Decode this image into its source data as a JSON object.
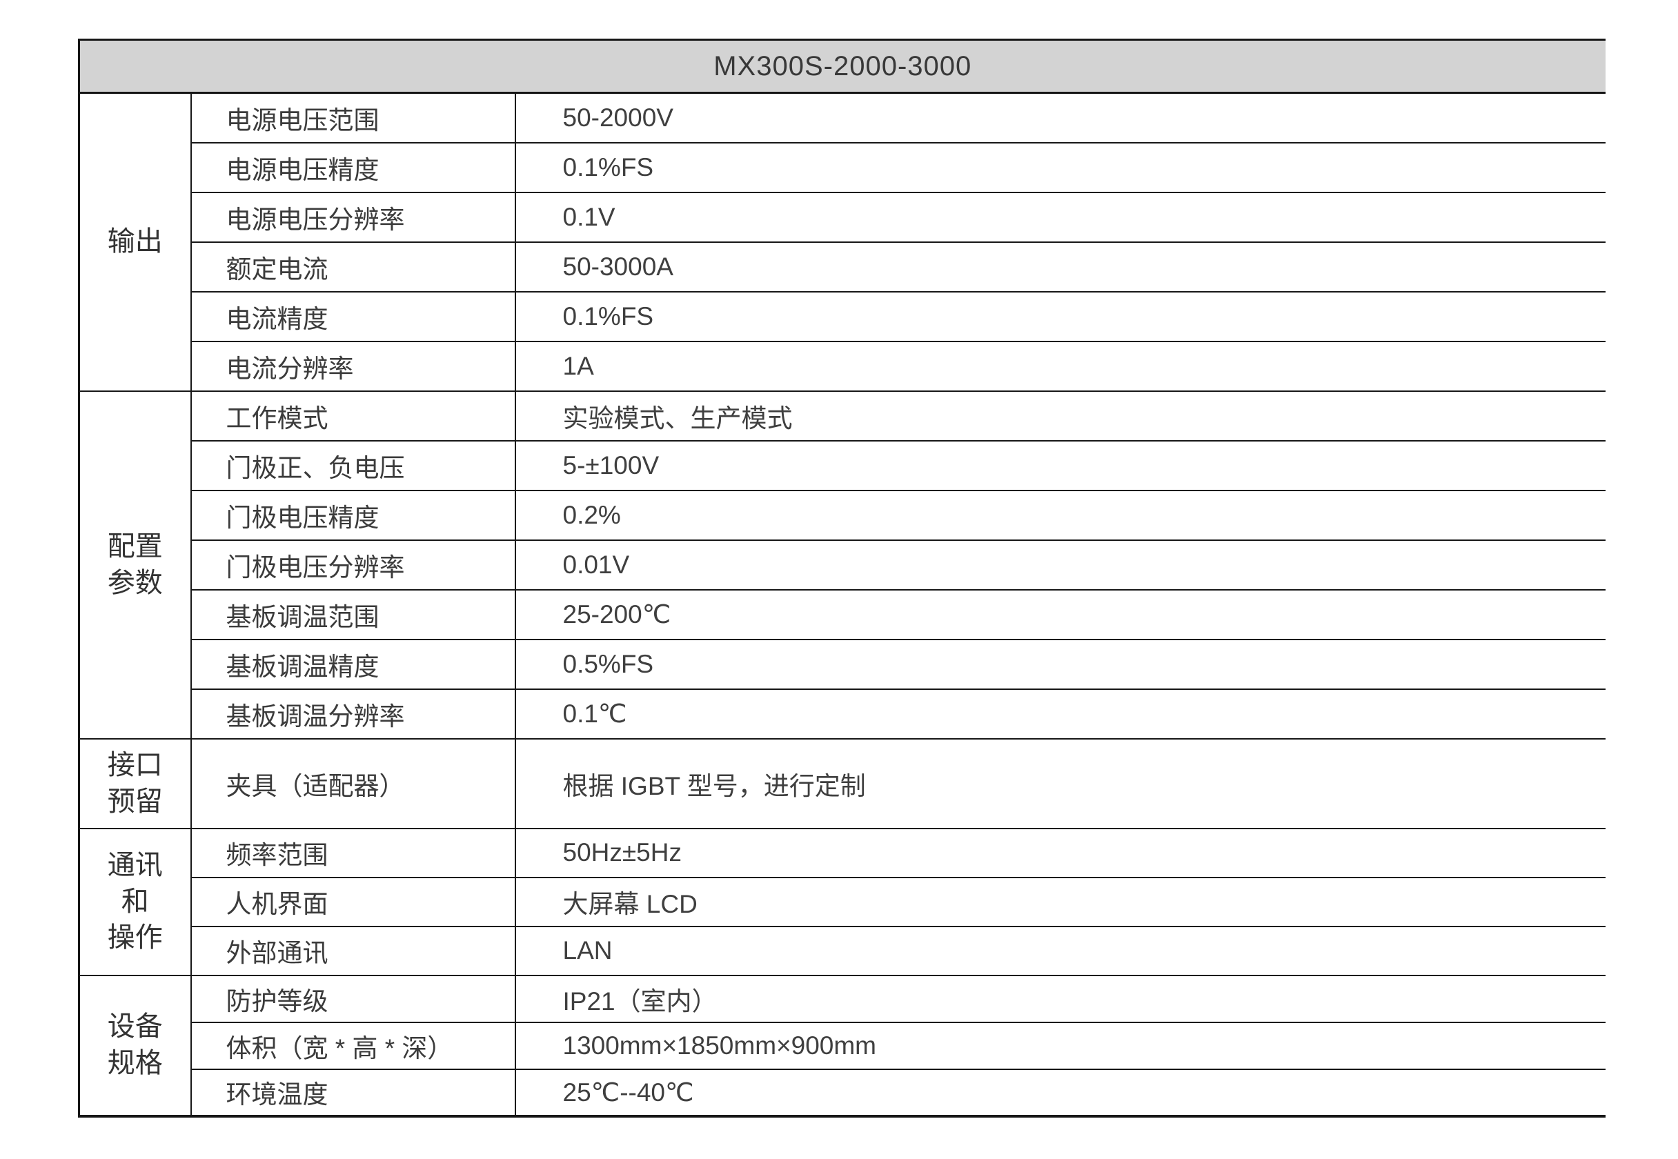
{
  "table": {
    "title": "MX300S-2000-3000",
    "colors": {
      "header_bg": "#d3d3d3",
      "border": "#161616",
      "text": "#3b3b3b"
    },
    "sections": [
      {
        "id": "output",
        "group": "输出",
        "group_lines": [
          "输出"
        ],
        "rows": [
          {
            "label": "电源电压范围",
            "value": "50-2000V"
          },
          {
            "label": "电源电压精度",
            "value": "0.1%FS"
          },
          {
            "label": "电源电压分辨率",
            "value": "0.1V"
          },
          {
            "label": "额定电流",
            "value": "50-3000A"
          },
          {
            "label": "电流精度",
            "value": "0.1%FS"
          },
          {
            "label": "电流分辨率",
            "value": "1A"
          }
        ]
      },
      {
        "id": "config-params",
        "group": "配置参数",
        "group_lines": [
          "配置",
          "参数"
        ],
        "rows": [
          {
            "label": "工作模式",
            "value": "实验模式、生产模式"
          },
          {
            "label": "门极正、负电压",
            "value": "5-±100V"
          },
          {
            "label": "门极电压精度",
            "value": "0.2%"
          },
          {
            "label": "门极电压分辨率",
            "value": "0.01V"
          },
          {
            "label": "基板调温范围",
            "value": "25-200℃"
          },
          {
            "label": "基板调温精度",
            "value": "0.5%FS"
          },
          {
            "label": "基板调温分辨率",
            "value": "0.1℃"
          }
        ]
      },
      {
        "id": "interface-reserved",
        "group": "接口预留",
        "group_lines": [
          "接口",
          "预留"
        ],
        "rows": [
          {
            "label": "夹具（适配器）",
            "value": "根据 IGBT 型号，进行定制"
          }
        ]
      },
      {
        "id": "comm-and-operation",
        "group": "通讯和操作",
        "group_lines": [
          "通讯",
          "和",
          "操作"
        ],
        "rows": [
          {
            "label": "频率范围",
            "value": "50Hz±5Hz"
          },
          {
            "label": "人机界面",
            "value": "大屏幕 LCD"
          },
          {
            "label": "外部通讯",
            "value": "LAN"
          }
        ]
      },
      {
        "id": "device-specs",
        "group": "设备规格",
        "group_lines": [
          "设备",
          "规格"
        ],
        "rows": [
          {
            "label": "防护等级",
            "value": "IP21（室内）"
          },
          {
            "label": "体积（宽 * 高 * 深）",
            "value": "1300mm×1850mm×900mm"
          },
          {
            "label": "环境温度",
            "value": "25℃--40℃"
          }
        ]
      }
    ]
  }
}
